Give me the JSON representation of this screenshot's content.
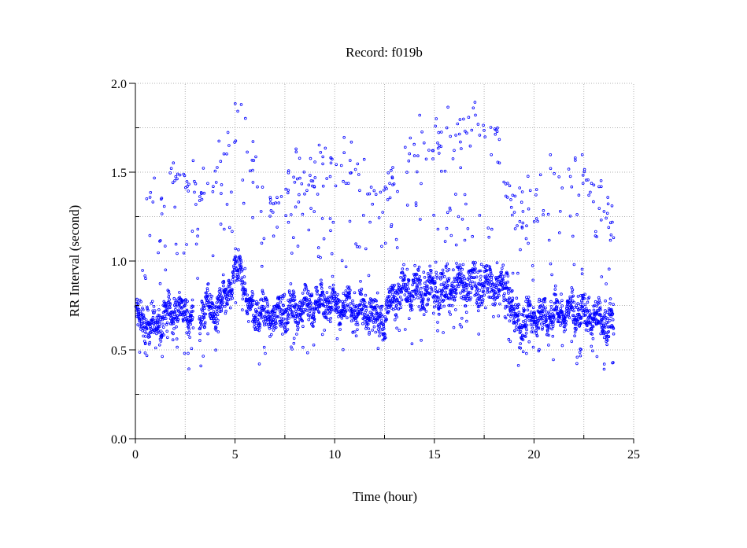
{
  "chart_data": {
    "type": "scatter",
    "title": "Record:  f019b",
    "xlabel": "Time (hour)",
    "ylabel": "RR Interval (second)",
    "xlim": [
      0,
      25
    ],
    "ylim": [
      0.0,
      2.0
    ],
    "xticks": [
      "0",
      "5",
      "10",
      "15",
      "20",
      "25"
    ],
    "xtick_values": [
      0,
      5,
      10,
      15,
      20,
      25
    ],
    "yticks": [
      "0.0",
      "0.5",
      "1.0",
      "1.5",
      "2.0"
    ],
    "ytick_values": [
      0,
      0.5,
      1.0,
      1.5,
      2.0
    ],
    "grid": true,
    "marker_color": "#0000ff",
    "main_band": {
      "hours": [
        0,
        0.5,
        1,
        1.5,
        2,
        2.5,
        3,
        3.5,
        4,
        4.5,
        5,
        5.4,
        5.6,
        6,
        6.5,
        7,
        7.5,
        8,
        9,
        9.5,
        10,
        11,
        12,
        12.5,
        13,
        14,
        15,
        16,
        17,
        18,
        18.7,
        19,
        20,
        21,
        22,
        23,
        23.5,
        24
      ],
      "rr_mean": [
        0.68,
        0.65,
        0.62,
        0.7,
        0.72,
        0.72,
        0.65,
        0.74,
        0.72,
        0.78,
        0.92,
        0.95,
        0.75,
        0.72,
        0.68,
        0.7,
        0.72,
        0.73,
        0.75,
        0.78,
        0.76,
        0.73,
        0.7,
        0.68,
        0.82,
        0.83,
        0.83,
        0.86,
        0.87,
        0.87,
        0.85,
        0.65,
        0.68,
        0.7,
        0.72,
        0.68,
        0.66,
        0.65
      ]
    },
    "upper_band": {
      "hours": [
        0,
        1,
        2,
        3,
        4,
        4.8,
        5.2,
        6,
        7,
        8,
        9,
        10,
        11,
        12,
        12.5,
        13,
        14,
        15,
        16,
        17,
        18,
        19,
        20,
        21,
        22,
        23,
        23.5,
        24
      ],
      "rr_mean": [
        1.38,
        1.35,
        1.45,
        1.4,
        1.45,
        1.75,
        1.85,
        1.5,
        1.3,
        1.45,
        1.5,
        1.6,
        1.55,
        1.4,
        1.3,
        1.5,
        1.65,
        1.65,
        1.7,
        1.75,
        1.72,
        1.3,
        1.35,
        1.45,
        1.5,
        1.4,
        1.3,
        1.2
      ]
    }
  }
}
